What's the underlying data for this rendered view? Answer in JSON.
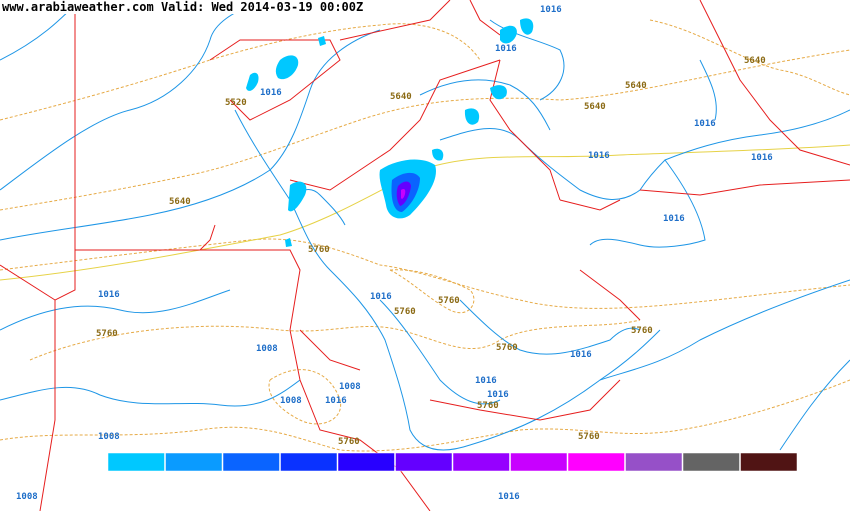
{
  "header": {
    "title": "www.arabiaweather.com Valid: Wed 2014-03-19 00:00Z"
  },
  "contour_labels": [
    "1016",
    "1016",
    "1016",
    "5520",
    "5640",
    "5640",
    "5640",
    "5640",
    "1016",
    "1016",
    "1016",
    "5640",
    "5760",
    "1016",
    "1016",
    "1016",
    "5760",
    "5760",
    "5760",
    "5760",
    "5760",
    "1016",
    "1008",
    "1016",
    "1008",
    "1016",
    "1008",
    "1016",
    "5760",
    "1008",
    "5760",
    "5760",
    "1016",
    "1008"
  ],
  "legend": {
    "colors": [
      "#00c8ff",
      "#0a9bff",
      "#0a64ff",
      "#0a32ff",
      "#2800ff",
      "#6400ff",
      "#9600ff",
      "#c800ff",
      "#ff00ff",
      "#9650c8",
      "#646464",
      "#501414"
    ]
  }
}
